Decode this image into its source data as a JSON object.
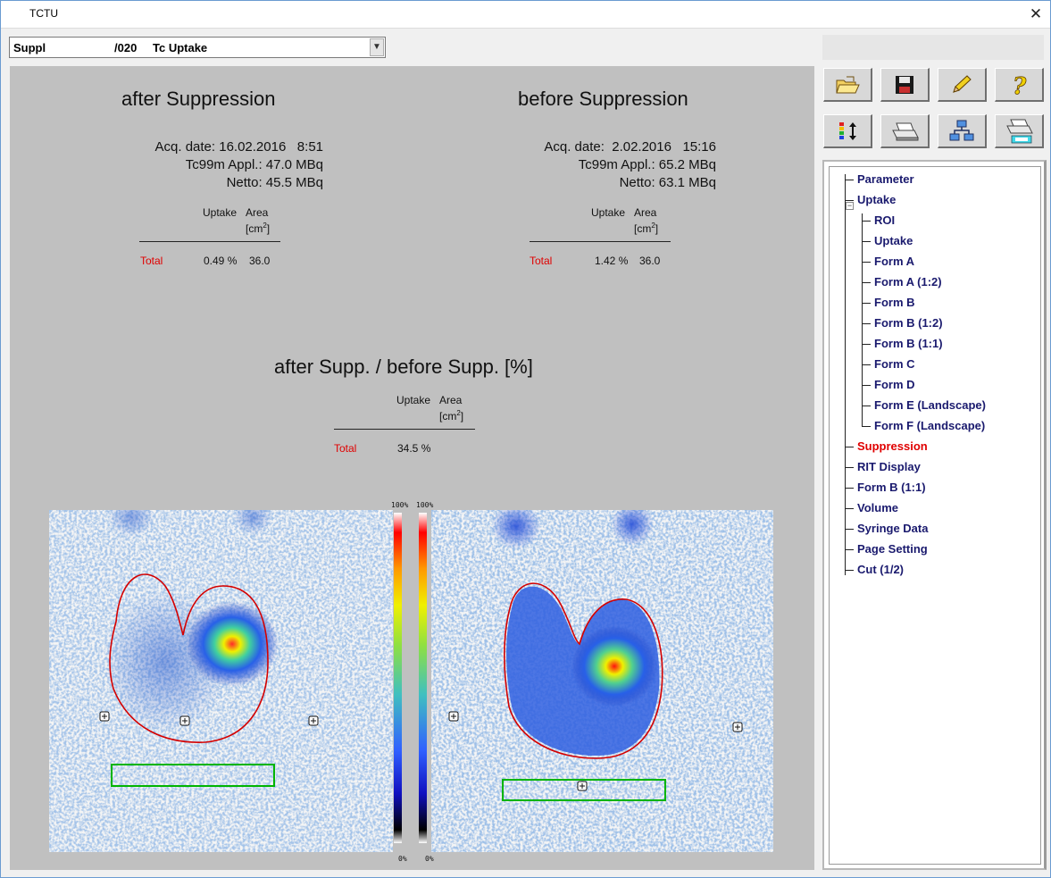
{
  "window": {
    "title": "TCTU"
  },
  "dropdown": {
    "field1": "Suppl",
    "field2": "/020",
    "field3": "Tc Uptake"
  },
  "after": {
    "title": "after Suppression",
    "acq_line": "Acq. date: 16.02.2016   8:51",
    "appl_line": "Tc99m Appl.: 47.0 MBq",
    "netto_line": "Netto: 45.5 MBq",
    "col_uptake": "Uptake",
    "col_area": "Area",
    "col_area_unit_a": "[cm",
    "col_area_unit_sup": "2",
    "col_area_unit_b": "]",
    "row_label": "Total",
    "uptake": "0.49 %",
    "area": "36.0"
  },
  "before": {
    "title": "before Suppression",
    "acq_line": "Acq. date:  2.02.2016   15:16",
    "appl_line": "Tc99m Appl.: 65.2 MBq",
    "netto_line": "Netto: 63.1 MBq",
    "col_uptake": "Uptake",
    "col_area": "Area",
    "col_area_unit_a": "[cm",
    "col_area_unit_sup": "2",
    "col_area_unit_b": "]",
    "row_label": "Total",
    "uptake": "1.42 %",
    "area": "36.0"
  },
  "ratio": {
    "title": "after Supp. / before Supp. [%]",
    "col_uptake": "Uptake",
    "col_area": "Area",
    "col_area_unit_a": "[cm",
    "col_area_unit_sup": "2",
    "col_area_unit_b": "]",
    "row_label": "Total",
    "uptake": "34.5 %"
  },
  "colorbar": {
    "top_left": "100%",
    "top_right": "100%",
    "bottom_left": "0%",
    "bottom_right": "0%"
  },
  "toolbar": {
    "row1": [
      "open-icon",
      "save-icon",
      "edit-icon",
      "help-icon"
    ],
    "row2": [
      "color-scale-icon",
      "print-icon",
      "network-icon",
      "print-setup-icon"
    ]
  },
  "tree": {
    "items": [
      {
        "label": "Parameter",
        "level": 0,
        "active": false
      },
      {
        "label": "Uptake",
        "level": 0,
        "active": false
      },
      {
        "label": "ROI",
        "level": 1,
        "active": false
      },
      {
        "label": "Uptake",
        "level": 1,
        "active": false
      },
      {
        "label": "Form A",
        "level": 1,
        "active": false
      },
      {
        "label": "Form A (1:2)",
        "level": 1,
        "active": false
      },
      {
        "label": "Form B",
        "level": 1,
        "active": false
      },
      {
        "label": "Form B (1:2)",
        "level": 1,
        "active": false
      },
      {
        "label": "Form B (1:1)",
        "level": 1,
        "active": false
      },
      {
        "label": "Form C",
        "level": 1,
        "active": false
      },
      {
        "label": "Form D",
        "level": 1,
        "active": false
      },
      {
        "label": "Form E (Landscape)",
        "level": 1,
        "active": false
      },
      {
        "label": "Form F (Landscape)",
        "level": 1,
        "active": false
      },
      {
        "label": "Suppression",
        "level": 0,
        "active": true
      },
      {
        "label": "RIT Display",
        "level": 0,
        "active": false
      },
      {
        "label": "Form B (1:1)",
        "level": 0,
        "active": false
      },
      {
        "label": "Volume",
        "level": 0,
        "active": false
      },
      {
        "label": "Syringe Data",
        "level": 0,
        "active": false
      },
      {
        "label": "Page Setting",
        "level": 0,
        "active": false
      },
      {
        "label": "Cut (1/2)",
        "level": 0,
        "active": false
      }
    ]
  },
  "colors": {
    "active": "#e00000",
    "tree_text": "#1a1a6e",
    "panel": "#c0c0c0",
    "roi_outline": "#d40000",
    "background_roi": "#00b400"
  }
}
